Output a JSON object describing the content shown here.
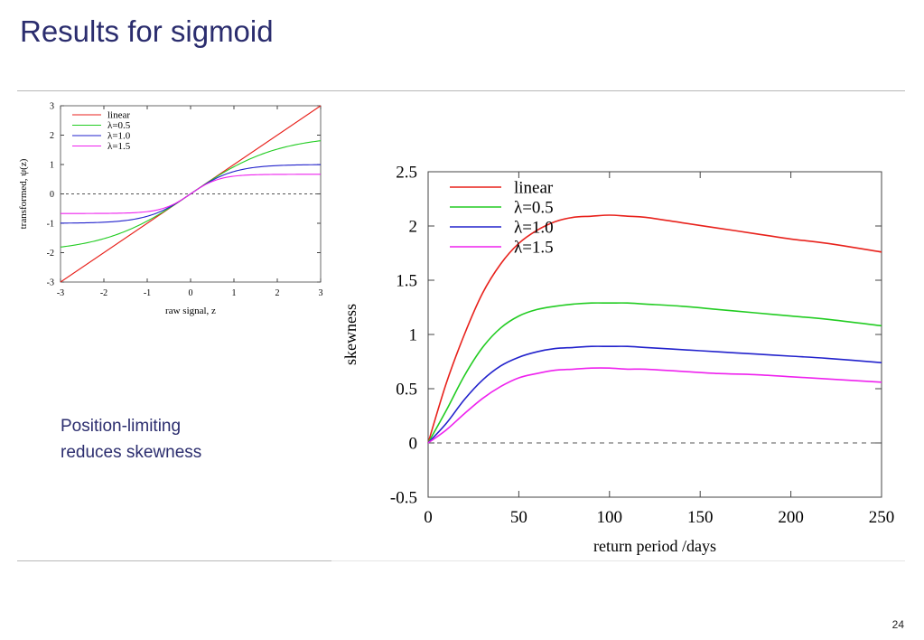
{
  "slide": {
    "title": "Results for sigmoid",
    "caption": "Position-limiting\nreduces skewness",
    "page_number": "24"
  },
  "chart_data": [
    {
      "type": "line",
      "xlabel": "raw signal, z",
      "ylabel": "transformed, ψ(z)",
      "xlim": [
        -3,
        3
      ],
      "ylim": [
        -3,
        3
      ],
      "x_ticks": [
        "-3",
        "-2",
        "-1",
        "0",
        "1",
        "2",
        "3"
      ],
      "y_ticks": [
        "-3",
        "-2",
        "-1",
        "0",
        "1",
        "2",
        "3"
      ],
      "grid": false,
      "legend_position": "top-left",
      "zero_line": "dashed",
      "series": [
        {
          "name": "linear",
          "color": "#e8221c",
          "kind": "sigmoid",
          "lambda": 0
        },
        {
          "name": "λ=0.5",
          "color": "#22cc22",
          "kind": "sigmoid",
          "lambda": 0.5
        },
        {
          "name": "λ=1.0",
          "color": "#2222cc",
          "kind": "sigmoid",
          "lambda": 1.0
        },
        {
          "name": "λ=1.5",
          "color": "#ee22ee",
          "kind": "sigmoid",
          "lambda": 1.5
        }
      ]
    },
    {
      "type": "line",
      "xlabel": "return period /days",
      "ylabel": "skewness",
      "xlim": [
        0,
        250
      ],
      "ylim": [
        -0.5,
        2.5
      ],
      "x_ticks": [
        "0",
        "50",
        "100",
        "150",
        "200",
        "250"
      ],
      "y_ticks": [
        "-0.5",
        "0",
        "0.5",
        "1",
        "1.5",
        "2",
        "2.5"
      ],
      "grid": false,
      "legend_position": "top-left",
      "zero_line": "dashed",
      "x": [
        0,
        10,
        20,
        30,
        40,
        50,
        60,
        70,
        80,
        90,
        100,
        110,
        120,
        140,
        160,
        180,
        200,
        220,
        250
      ],
      "series": [
        {
          "name": "linear",
          "color": "#e8221c",
          "values": [
            0,
            0.55,
            1.0,
            1.38,
            1.65,
            1.84,
            1.96,
            2.04,
            2.08,
            2.09,
            2.1,
            2.09,
            2.08,
            2.03,
            1.98,
            1.93,
            1.88,
            1.84,
            1.76
          ]
        },
        {
          "name": "λ=0.5",
          "color": "#22cc22",
          "values": [
            0,
            0.3,
            0.62,
            0.88,
            1.06,
            1.17,
            1.23,
            1.26,
            1.28,
            1.29,
            1.29,
            1.29,
            1.28,
            1.26,
            1.23,
            1.2,
            1.17,
            1.14,
            1.08
          ]
        },
        {
          "name": "λ=1.0",
          "color": "#2222cc",
          "values": [
            0,
            0.18,
            0.4,
            0.58,
            0.71,
            0.79,
            0.84,
            0.87,
            0.88,
            0.89,
            0.89,
            0.89,
            0.88,
            0.86,
            0.84,
            0.82,
            0.8,
            0.78,
            0.74
          ]
        },
        {
          "name": "λ=1.5",
          "color": "#ee22ee",
          "values": [
            0,
            0.12,
            0.27,
            0.41,
            0.52,
            0.6,
            0.64,
            0.67,
            0.68,
            0.69,
            0.69,
            0.68,
            0.68,
            0.66,
            0.64,
            0.63,
            0.61,
            0.59,
            0.56
          ]
        }
      ]
    }
  ]
}
